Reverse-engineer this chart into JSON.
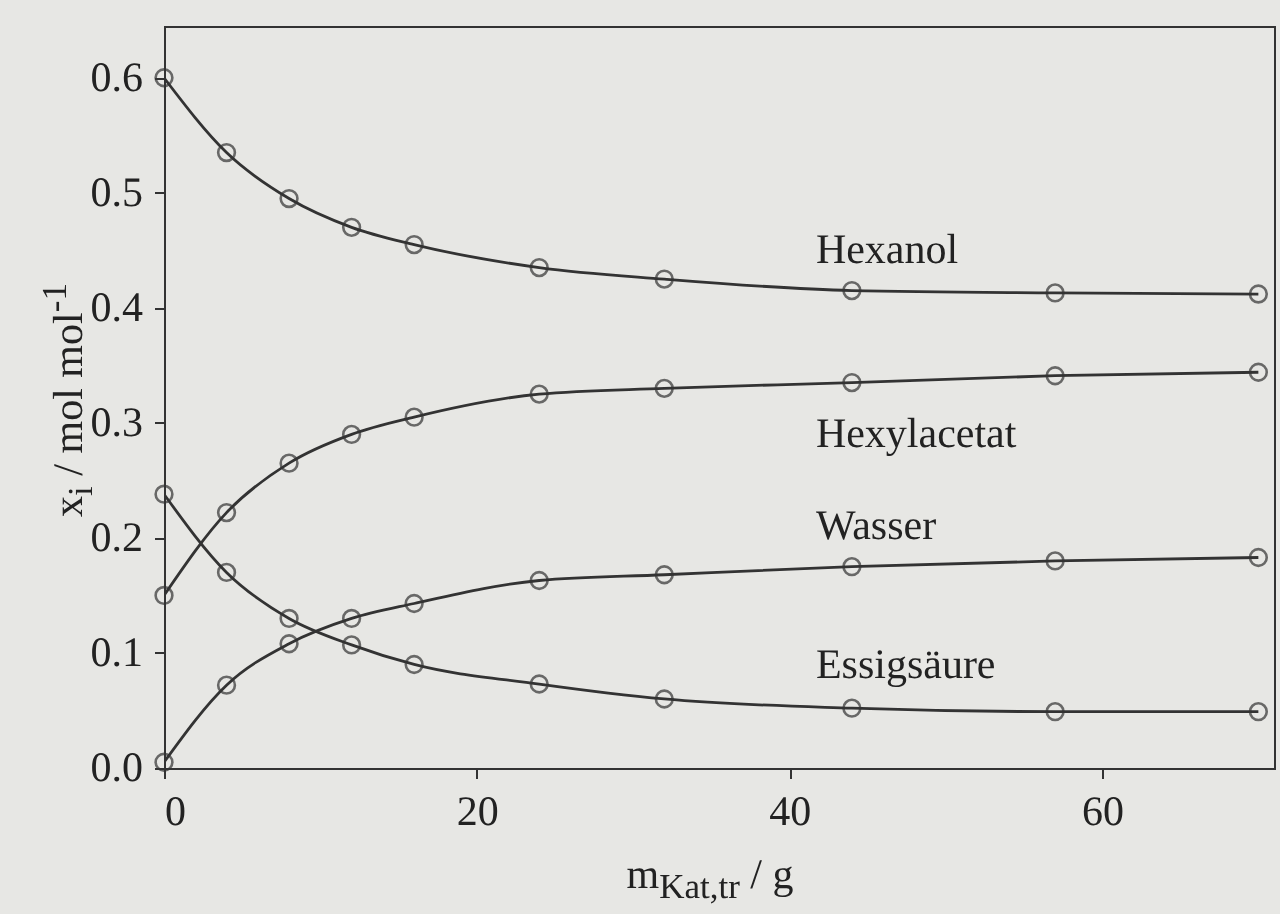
{
  "chart_data": {
    "type": "line",
    "xlabel": "m$_{Kat,tr}$ / g",
    "ylabel": "x$_{i}$ / mol mol$^{-1}$",
    "x": [
      0,
      4,
      8,
      12,
      16,
      24,
      32,
      44,
      57,
      70
    ],
    "series": [
      {
        "name": "Hexanol",
        "color": "#333333",
        "values": [
          0.6,
          0.535,
          0.495,
          0.47,
          0.455,
          0.435,
          0.425,
          0.415,
          0.413,
          0.412
        ]
      },
      {
        "name": "Hexylacetat",
        "color": "#333333",
        "values": [
          0.15,
          0.222,
          0.265,
          0.29,
          0.305,
          0.325,
          0.33,
          0.335,
          0.341,
          0.344
        ]
      },
      {
        "name": "Wasser",
        "color": "#333333",
        "values": [
          0.005,
          0.072,
          0.108,
          0.13,
          0.143,
          0.163,
          0.168,
          0.175,
          0.18,
          0.183
        ]
      },
      {
        "name": "Essigsäure",
        "color": "#333333",
        "values": [
          0.238,
          0.17,
          0.13,
          0.107,
          0.09,
          0.073,
          0.06,
          0.052,
          0.049,
          0.049
        ]
      }
    ],
    "xlim": [
      0,
      71
    ],
    "ylim": [
      0,
      0.645
    ],
    "xticks": [
      0,
      20,
      40,
      60
    ],
    "yticks": [
      {
        "value": 0,
        "label": "0.0"
      },
      0.1,
      0.2,
      0.3,
      0.4,
      0.5,
      0.6
    ],
    "marker": "circle",
    "line_style": "solid"
  }
}
